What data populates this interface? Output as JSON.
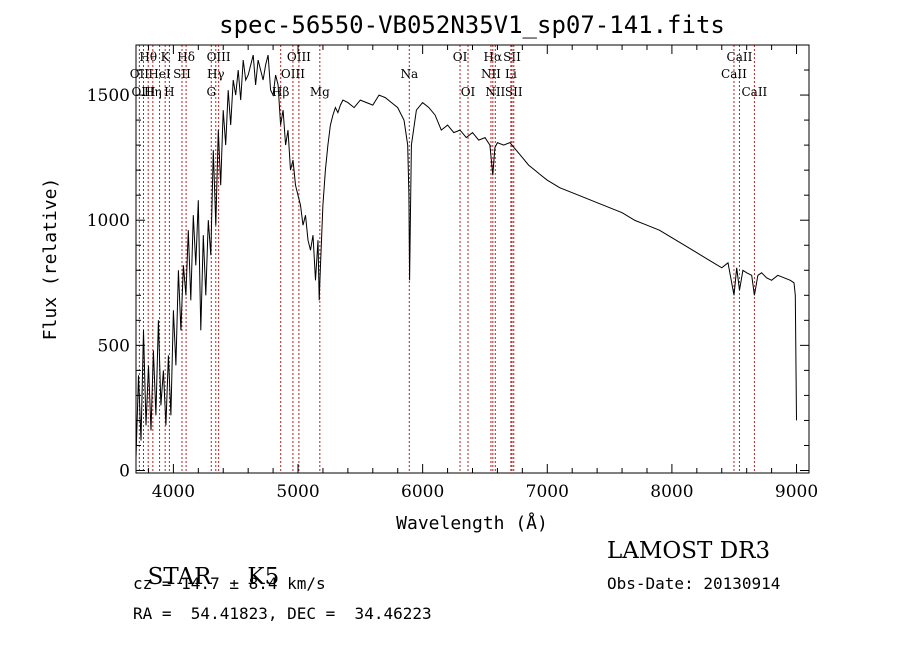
{
  "chart_data": {
    "type": "line",
    "title": "spec-56550-VB052N35V1_sp07-141.fits",
    "xlabel": "Wavelength (Å)",
    "ylabel": "Flux (relative)",
    "xlim": [
      3700,
      9100
    ],
    "ylim": [
      -10,
      1700
    ],
    "xticks": [
      4000,
      5000,
      6000,
      7000,
      8000,
      9000
    ],
    "yticks": [
      0,
      500,
      1000,
      1500
    ],
    "grid": false,
    "colors": {
      "line": "#000000",
      "marker": "#b22222"
    },
    "series": [
      {
        "name": "flux",
        "x": [
          3700,
          3720,
          3740,
          3760,
          3780,
          3800,
          3820,
          3840,
          3860,
          3880,
          3900,
          3920,
          3940,
          3960,
          3980,
          4000,
          4020,
          4040,
          4060,
          4080,
          4100,
          4120,
          4140,
          4160,
          4180,
          4200,
          4220,
          4240,
          4260,
          4280,
          4300,
          4320,
          4340,
          4360,
          4380,
          4400,
          4420,
          4440,
          4460,
          4480,
          4500,
          4520,
          4540,
          4560,
          4580,
          4600,
          4620,
          4640,
          4660,
          4680,
          4700,
          4720,
          4740,
          4760,
          4780,
          4800,
          4820,
          4840,
          4860,
          4880,
          4900,
          4920,
          4940,
          4960,
          4980,
          5000,
          5020,
          5040,
          5060,
          5080,
          5100,
          5120,
          5140,
          5160,
          5170,
          5180,
          5200,
          5220,
          5240,
          5260,
          5280,
          5300,
          5320,
          5340,
          5360,
          5400,
          5450,
          5500,
          5550,
          5600,
          5650,
          5700,
          5750,
          5800,
          5850,
          5880,
          5890,
          5895,
          5900,
          5910,
          5950,
          6000,
          6050,
          6100,
          6150,
          6200,
          6250,
          6300,
          6350,
          6400,
          6450,
          6500,
          6540,
          6563,
          6580,
          6600,
          6650,
          6700,
          6750,
          6800,
          6850,
          6900,
          6950,
          7000,
          7100,
          7200,
          7300,
          7400,
          7500,
          7600,
          7700,
          7800,
          7900,
          8000,
          8100,
          8200,
          8300,
          8400,
          8450,
          8498,
          8520,
          8542,
          8570,
          8600,
          8640,
          8662,
          8690,
          8720,
          8760,
          8800,
          8850,
          8900,
          8950,
          8980,
          8990,
          9000
        ],
        "y": [
          50,
          380,
          120,
          560,
          180,
          420,
          160,
          480,
          220,
          600,
          260,
          400,
          180,
          460,
          220,
          640,
          420,
          800,
          560,
          820,
          700,
          960,
          680,
          1020,
          820,
          1080,
          560,
          940,
          700,
          1000,
          860,
          1280,
          980,
          1360,
          1140,
          1440,
          1300,
          1520,
          1380,
          1560,
          1500,
          1600,
          1480,
          1640,
          1560,
          1580,
          1620,
          1660,
          1540,
          1640,
          1600,
          1560,
          1620,
          1660,
          1520,
          1500,
          1580,
          1540,
          1380,
          1440,
          1300,
          1360,
          1200,
          1240,
          1140,
          1100,
          1060,
          980,
          1020,
          920,
          880,
          940,
          760,
          920,
          680,
          820,
          1060,
          1200,
          1300,
          1380,
          1420,
          1450,
          1430,
          1460,
          1480,
          1470,
          1450,
          1480,
          1470,
          1460,
          1500,
          1490,
          1470,
          1450,
          1400,
          1300,
          1100,
          760,
          950,
          1300,
          1440,
          1470,
          1450,
          1420,
          1360,
          1380,
          1350,
          1360,
          1330,
          1350,
          1320,
          1330,
          1300,
          1180,
          1290,
          1310,
          1300,
          1310,
          1280,
          1250,
          1220,
          1200,
          1180,
          1160,
          1130,
          1110,
          1090,
          1070,
          1050,
          1030,
          1000,
          980,
          960,
          930,
          900,
          870,
          840,
          810,
          830,
          700,
          810,
          720,
          800,
          790,
          780,
          700,
          780,
          790,
          770,
          760,
          780,
          770,
          760,
          750,
          700,
          200
        ]
      }
    ],
    "line_markers": [
      {
        "label": "Hθ",
        "x": 3798,
        "row": 1
      },
      {
        "label": "OII",
        "x": 3727,
        "row": 2
      },
      {
        "label": "OIII",
        "x": 3760,
        "row": 3
      },
      {
        "label": "Hη",
        "x": 3835,
        "row": 3
      },
      {
        "label": "K",
        "x": 3934,
        "row": 1
      },
      {
        "label": "HeI",
        "x": 3889,
        "row": 2
      },
      {
        "label": "SII",
        "x": 4069,
        "row": 2
      },
      {
        "label": "H",
        "x": 3968,
        "row": 3
      },
      {
        "label": "Hδ",
        "x": 4102,
        "row": 1
      },
      {
        "label": "OIII",
        "x": 4363,
        "row": 1
      },
      {
        "label": "Hγ",
        "x": 4340,
        "row": 2
      },
      {
        "label": "G",
        "x": 4304,
        "row": 3
      },
      {
        "label": "Hβ",
        "x": 4861,
        "row": 3
      },
      {
        "label": "OIII",
        "x": 5007,
        "row": 1
      },
      {
        "label": "OIII",
        "x": 4959,
        "row": 2
      },
      {
        "label": "Mg",
        "x": 5175,
        "row": 3
      },
      {
        "label": "Na",
        "x": 5893,
        "row": 2
      },
      {
        "label": "OI",
        "x": 6300,
        "row": 1
      },
      {
        "label": "OI",
        "x": 6364,
        "row": 3
      },
      {
        "label": "Hα",
        "x": 6563,
        "row": 1
      },
      {
        "label": "NII",
        "x": 6548,
        "row": 2
      },
      {
        "label": "NII",
        "x": 6583,
        "row": 3
      },
      {
        "label": "SII",
        "x": 6717,
        "row": 1
      },
      {
        "label": "Li",
        "x": 6708,
        "row": 2
      },
      {
        "label": "SII",
        "x": 6731,
        "row": 3
      },
      {
        "label": "CaII",
        "x": 8542,
        "row": 1
      },
      {
        "label": "CaII",
        "x": 8498,
        "row": 2
      },
      {
        "label": "CaII",
        "x": 8662,
        "row": 3
      }
    ]
  },
  "info": {
    "class_label": "STAR",
    "subclass": "K5",
    "survey": "LAMOST DR3",
    "cz": "cz = 14.7 ± 8.4 km/s",
    "obs_date": "Obs-Date: 20130914",
    "radec": "RA =  54.41823, DEC =  34.46223"
  }
}
